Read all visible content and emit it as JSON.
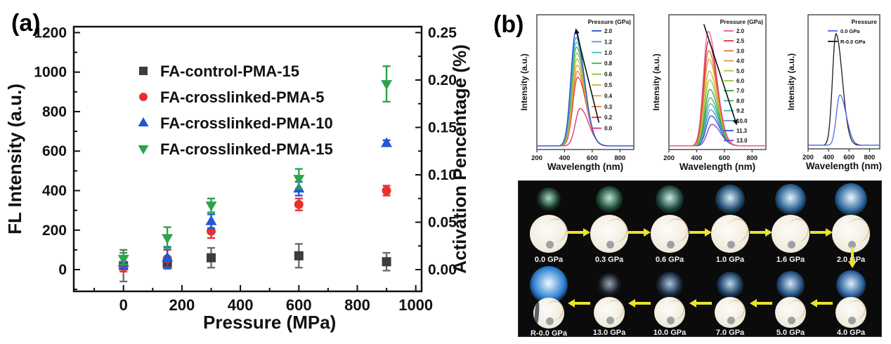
{
  "figure": {
    "panel_a_label": "(a)",
    "panel_b_label": "(b)"
  },
  "chart_data": [
    {
      "id": "pressure-fl-scatter",
      "type": "scatter",
      "xlabel": "Pressure (MPa)",
      "ylabel_left": "FL Intensity (a.u.)",
      "ylabel_right": "Activation Pencentage (%)",
      "xlim": [
        -170,
        1020
      ],
      "ylim_left": [
        -110,
        1230
      ],
      "ylim_right": [
        -0.02292,
        0.25625
      ],
      "x_ticks": [
        0,
        200,
        400,
        600,
        800,
        1000
      ],
      "y_ticks_left": [
        0,
        200,
        400,
        600,
        800,
        1000,
        1200
      ],
      "y_ticks_right": [
        "0.00",
        "0.05",
        "0.10",
        "0.15",
        "0.20",
        "0.25"
      ],
      "grid": false,
      "legend_position": "upper-left-inside",
      "x": [
        0,
        150,
        300,
        600,
        900
      ],
      "series": [
        {
          "name": "FA-control-PMA-15",
          "marker": "square",
          "color": "#3d3d3d",
          "error_color": "#6e6e6e",
          "values": [
            20,
            30,
            60,
            70,
            40
          ],
          "errors": [
            80,
            25,
            50,
            60,
            45
          ]
        },
        {
          "name": "FA-crosslinked-PMA-5",
          "marker": "circle",
          "color": "#e93030",
          "error_color": "#e93030",
          "values": [
            15,
            55,
            195,
            330,
            400
          ],
          "errors": [
            25,
            45,
            35,
            30,
            25
          ]
        },
        {
          "name": "FA-crosslinked-PMA-10",
          "marker": "triangle-up",
          "color": "#1f57d8",
          "error_color": "#1f57d8",
          "values": [
            35,
            60,
            245,
            410,
            640
          ],
          "errors": [
            30,
            55,
            35,
            35,
            15
          ]
        },
        {
          "name": "FA-crosslinked-PMA-15",
          "marker": "triangle-down",
          "color": "#2da34e",
          "error_color": "#2da34e",
          "values": [
            55,
            160,
            325,
            460,
            940
          ],
          "errors": [
            30,
            55,
            35,
            50,
            90
          ]
        }
      ]
    },
    {
      "id": "spectra-compression-low",
      "type": "line",
      "legend_title": "Pressure (GPa)",
      "xlabel": "Wavelength (nm)",
      "ylabel": "Intensity (a.u.)",
      "xlim": [
        200,
        900
      ],
      "x_ticks": [
        200,
        400,
        600,
        800
      ],
      "arrow": "up",
      "series": [
        {
          "name": "2.0",
          "color": "#2b4fd7",
          "peak": 480,
          "height": 0.95
        },
        {
          "name": "1.2",
          "color": "#4b93d9",
          "peak": 482,
          "height": 0.9
        },
        {
          "name": "1.0",
          "color": "#49bdc3",
          "peak": 484,
          "height": 0.86
        },
        {
          "name": "0.8",
          "color": "#44b055",
          "peak": 485,
          "height": 0.82
        },
        {
          "name": "0.6",
          "color": "#8cc63f",
          "peak": 487,
          "height": 0.77
        },
        {
          "name": "0.5",
          "color": "#c8b53b",
          "peak": 488,
          "height": 0.72
        },
        {
          "name": "0.4",
          "color": "#e0a339",
          "peak": 490,
          "height": 0.67
        },
        {
          "name": "0.3",
          "color": "#e87f35",
          "peak": 492,
          "height": 0.62
        },
        {
          "name": "0.2",
          "color": "#e8392f",
          "peak": 494,
          "height": 0.57
        },
        {
          "name": "0.0",
          "color": "#e03077",
          "peak": 512,
          "height": 0.31
        }
      ]
    },
    {
      "id": "spectra-compression-high",
      "type": "line",
      "legend_title": "Pressure (GPa)",
      "xlabel": "Wavelength (nm)",
      "ylabel": "Intensity (a.u.)",
      "xlim": [
        200,
        900
      ],
      "x_ticks": [
        200,
        400,
        600,
        800
      ],
      "arrow": "down",
      "series": [
        {
          "name": "2.0",
          "color": "#e85a9b",
          "peak": 483,
          "height": 0.95
        },
        {
          "name": "2.5",
          "color": "#e02b2b",
          "peak": 485,
          "height": 0.87
        },
        {
          "name": "3.0",
          "color": "#d9772e",
          "peak": 486,
          "height": 0.79
        },
        {
          "name": "4.0",
          "color": "#cfa13c",
          "peak": 488,
          "height": 0.72
        },
        {
          "name": "5.0",
          "color": "#c4ba3d",
          "peak": 490,
          "height": 0.62
        },
        {
          "name": "6.0",
          "color": "#9cc43c",
          "peak": 492,
          "height": 0.55
        },
        {
          "name": "7.0",
          "color": "#2f9e45",
          "peak": 494,
          "height": 0.47
        },
        {
          "name": "8.0",
          "color": "#38ad85",
          "peak": 496,
          "height": 0.4
        },
        {
          "name": "9.2",
          "color": "#41b3b3",
          "peak": 498,
          "height": 0.35
        },
        {
          "name": "10.0",
          "color": "#4a90d9",
          "peak": 500,
          "height": 0.3
        },
        {
          "name": "11.3",
          "color": "#2f53c7",
          "peak": 503,
          "height": 0.25
        },
        {
          "name": "13.0",
          "color": "#7a3fbf",
          "peak": 510,
          "height": 0.18
        }
      ]
    },
    {
      "id": "spectra-recovery",
      "type": "line",
      "legend_title": "Pressure",
      "xlabel": "Wavelength (nm)",
      "ylabel": "Intensity (a.u.)",
      "xlim": [
        200,
        900
      ],
      "x_ticks": [
        200,
        400,
        600,
        800
      ],
      "arrow": "none",
      "series": [
        {
          "name": "0.0 GPa",
          "color": "#4a6af5",
          "peak": 510,
          "height": 0.42
        },
        {
          "name": "R-0.0 GPa",
          "color": "#1a1a1a",
          "peak": 472,
          "height": 0.93
        }
      ]
    }
  ],
  "photo_grid": {
    "bg": "#0b0b0b",
    "arrow_color": "#ece32b",
    "rows": [
      {
        "direction": "right",
        "cells": [
          {
            "label": "0.0 GPa",
            "glow_inner": "#aad8c2",
            "glow_outer": "#16352a",
            "glow_size": 34
          },
          {
            "label": "0.3 GPa",
            "glow_inner": "#bfe7d6",
            "glow_outer": "#1c4634",
            "glow_size": 38
          },
          {
            "label": "0.6 GPa",
            "glow_inner": "#c8ece4",
            "glow_outer": "#1d453c",
            "glow_size": 40
          },
          {
            "label": "1.0 GPa",
            "glow_inner": "#d9f1fc",
            "glow_outer": "#1d4a6e",
            "glow_size": 42
          },
          {
            "label": "1.6 GPa",
            "glow_inner": "#e2f4ff",
            "glow_outer": "#275c8e",
            "glow_size": 44
          },
          {
            "label": "2.0 GPa",
            "glow_inner": "#e9f7ff",
            "glow_outer": "#2d669c",
            "glow_size": 46
          }
        ]
      },
      {
        "direction": "left",
        "cells": [
          {
            "label": "R-0.0 GPa",
            "glow_inner": "#eefaff",
            "glow_outer": "#2f7fd2",
            "glow_size": 54,
            "sliver": true
          },
          {
            "label": "13.0 GPa",
            "glow_inner": "#9aa6b0",
            "glow_outer": "#151c22",
            "glow_size": 34
          },
          {
            "label": "10.0 GPa",
            "glow_inner": "#a8c4de",
            "glow_outer": "#17293d",
            "glow_size": 38
          },
          {
            "label": "7.0 GPa",
            "glow_inner": "#b9d9f2",
            "glow_outer": "#1b3a5c",
            "glow_size": 38
          },
          {
            "label": "5.0 GPa",
            "glow_inner": "#cfe7fb",
            "glow_outer": "#224e7e",
            "glow_size": 40
          },
          {
            "label": "4.0 GPa",
            "glow_inner": "#dbeffe",
            "glow_outer": "#2a5f9a",
            "glow_size": 42
          }
        ]
      }
    ]
  }
}
